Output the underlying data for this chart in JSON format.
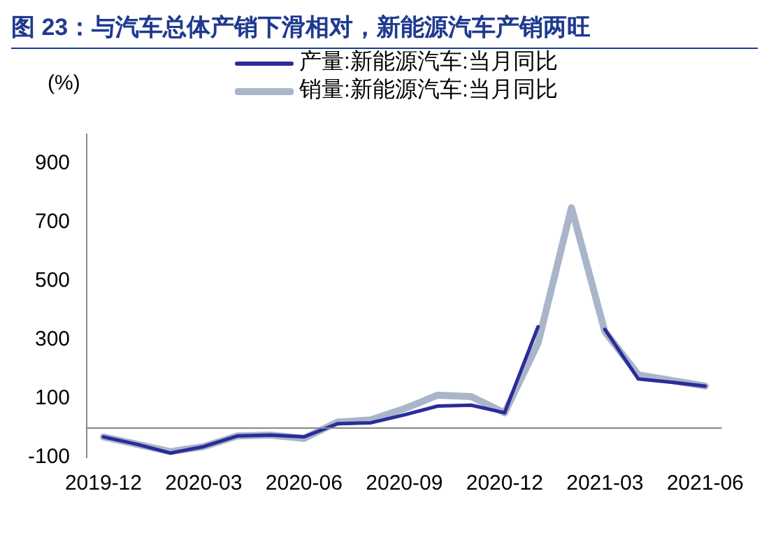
{
  "chart_data": {
    "type": "line",
    "title": "图 23：与汽车总体产销下滑相对，新能源汽车产销两旺",
    "ylabel": "(%)",
    "categories": [
      "2019-12",
      null,
      null,
      "2020-03",
      null,
      null,
      "2020-06",
      null,
      null,
      "2020-09",
      null,
      null,
      "2020-12",
      null,
      null,
      "2021-03",
      null,
      null,
      "2021-06"
    ],
    "series": [
      {
        "name": "产量:新能源汽车:当月同比",
        "color": "#2b2b9a",
        "values": [
          -30,
          -55,
          -85,
          -63,
          -27,
          -24,
          -30,
          15,
          18,
          45,
          75,
          78,
          52,
          345,
          null,
          336,
          167,
          156,
          143
        ]
      },
      {
        "name": "销量:新能源汽车:当月同比",
        "color": "#a9b6c9",
        "values": [
          -30,
          -55,
          -80,
          -63,
          -27,
          -24,
          -35,
          20,
          28,
          66,
          112,
          107,
          52,
          289,
          750,
          328,
          181,
          162,
          143
        ]
      }
    ],
    "ylim": [
      -100,
      1000
    ],
    "yticks": [
      -100,
      100,
      300,
      500,
      700,
      900
    ],
    "grid": false,
    "legend": "top",
    "marker": "none",
    "line_style": "solid"
  }
}
